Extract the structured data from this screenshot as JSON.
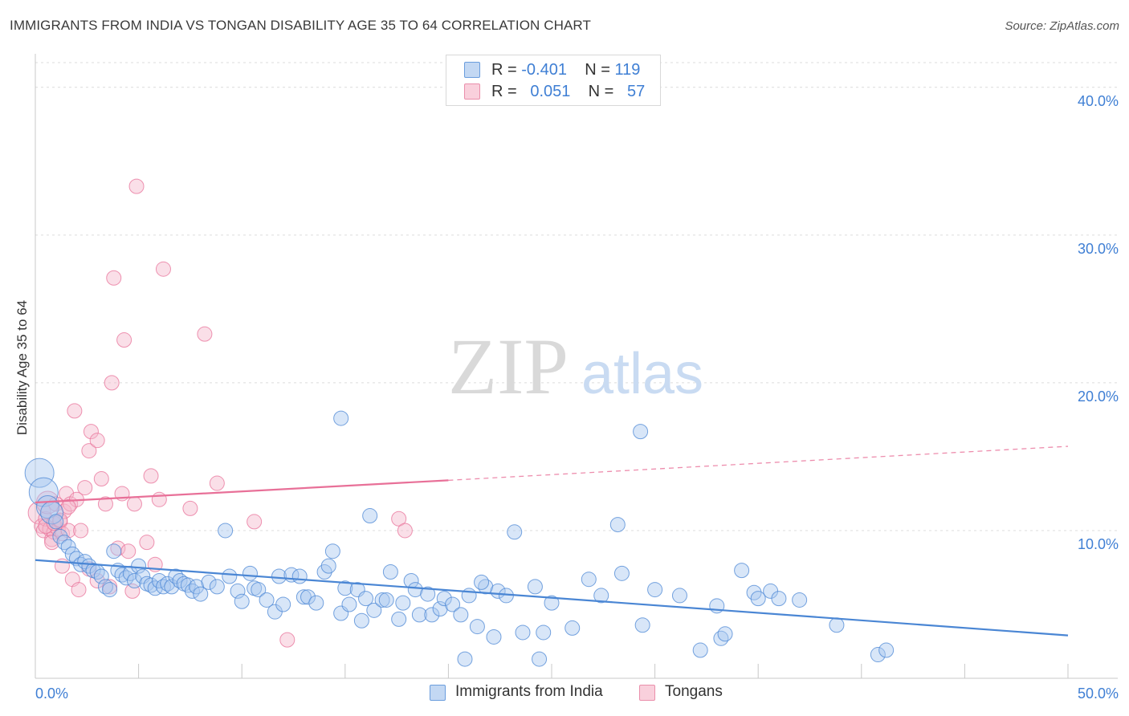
{
  "title": "IMMIGRANTS FROM INDIA VS TONGAN DISABILITY AGE 35 TO 64 CORRELATION CHART",
  "source": "Source: ZipAtlas.com",
  "watermark": {
    "zip": "ZIP",
    "atlas": "atlas"
  },
  "legend": {
    "rows": [
      {
        "r_label": "R =",
        "r_value": "-0.401",
        "n_label": "N =",
        "n_value": "119",
        "color": "#a9c7ef"
      },
      {
        "r_label": "R =",
        "r_value": "0.051",
        "n_label": "N =",
        "n_value": "57",
        "color": "#f5b8cb"
      }
    ]
  },
  "bottom_legend": [
    {
      "label": "Immigrants from India",
      "color": "#a9c7ef"
    },
    {
      "label": "Tongans",
      "color": "#f5b8cb"
    }
  ],
  "chart_data": {
    "type": "scatter",
    "title": "IMMIGRANTS FROM INDIA VS TONGAN DISABILITY AGE 35 TO 64 CORRELATION CHART",
    "xlabel": "",
    "ylabel": "Disability Age 35 to 64",
    "xlim": [
      0,
      50
    ],
    "ylim": [
      0,
      42
    ],
    "x_tick_labels": [
      "0.0%",
      "50.0%"
    ],
    "y_ticks": [
      10,
      20,
      30,
      40
    ],
    "y_tick_labels": [
      "10.0%",
      "20.0%",
      "30.0%",
      "40.0%"
    ],
    "grid": true,
    "colors": {
      "india": "#4a86d4",
      "india_fill": "#a9c7ef",
      "tongan": "#e87098",
      "tongan_fill": "#f5b8cb",
      "axis_label": "#3f7fd4"
    },
    "series": [
      {
        "name": "Immigrants from India",
        "trend": {
          "x": [
            0,
            50
          ],
          "y": [
            8.0,
            2.9
          ]
        },
        "points": [
          [
            0.2,
            13.9
          ],
          [
            0.4,
            12.6
          ],
          [
            0.6,
            11.6
          ],
          [
            0.8,
            11.2
          ],
          [
            1.0,
            10.6
          ],
          [
            1.2,
            9.6
          ],
          [
            1.4,
            9.2
          ],
          [
            1.6,
            8.9
          ],
          [
            1.8,
            8.4
          ],
          [
            2.0,
            8.1
          ],
          [
            2.2,
            7.7
          ],
          [
            2.4,
            7.9
          ],
          [
            2.6,
            7.6
          ],
          [
            2.8,
            7.3
          ],
          [
            3.0,
            7.2
          ],
          [
            3.2,
            6.9
          ],
          [
            3.4,
            6.2
          ],
          [
            3.6,
            6.0
          ],
          [
            3.8,
            8.6
          ],
          [
            4.0,
            7.3
          ],
          [
            4.2,
            7.0
          ],
          [
            4.4,
            6.8
          ],
          [
            4.6,
            7.1
          ],
          [
            4.8,
            6.6
          ],
          [
            5.0,
            7.6
          ],
          [
            5.2,
            6.9
          ],
          [
            5.4,
            6.4
          ],
          [
            5.6,
            6.3
          ],
          [
            5.8,
            6.1
          ],
          [
            6.0,
            6.6
          ],
          [
            6.2,
            6.2
          ],
          [
            6.4,
            6.4
          ],
          [
            6.6,
            6.2
          ],
          [
            6.8,
            6.9
          ],
          [
            7.0,
            6.6
          ],
          [
            7.2,
            6.4
          ],
          [
            7.4,
            6.3
          ],
          [
            7.6,
            5.9
          ],
          [
            7.8,
            6.2
          ],
          [
            8.0,
            5.7
          ],
          [
            8.4,
            6.5
          ],
          [
            8.8,
            6.2
          ],
          [
            9.2,
            10.0
          ],
          [
            9.4,
            6.9
          ],
          [
            9.8,
            5.9
          ],
          [
            10.0,
            5.2
          ],
          [
            10.4,
            7.1
          ],
          [
            10.6,
            6.1
          ],
          [
            10.8,
            6.0
          ],
          [
            11.2,
            5.3
          ],
          [
            11.6,
            4.5
          ],
          [
            11.8,
            6.9
          ],
          [
            12.0,
            5.0
          ],
          [
            12.4,
            7.0
          ],
          [
            12.8,
            6.9
          ],
          [
            13.0,
            5.5
          ],
          [
            13.2,
            5.5
          ],
          [
            13.6,
            5.1
          ],
          [
            14.0,
            7.2
          ],
          [
            14.2,
            7.6
          ],
          [
            14.4,
            8.6
          ],
          [
            14.8,
            4.4
          ],
          [
            15.0,
            6.1
          ],
          [
            15.2,
            5.0
          ],
          [
            15.6,
            6.0
          ],
          [
            15.8,
            3.9
          ],
          [
            16.0,
            5.4
          ],
          [
            16.4,
            4.6
          ],
          [
            16.8,
            5.3
          ],
          [
            17.0,
            5.3
          ],
          [
            17.2,
            7.2
          ],
          [
            17.6,
            4.0
          ],
          [
            17.8,
            5.1
          ],
          [
            18.2,
            6.6
          ],
          [
            18.4,
            6.0
          ],
          [
            18.6,
            4.3
          ],
          [
            19.0,
            5.7
          ],
          [
            19.2,
            4.3
          ],
          [
            19.6,
            4.7
          ],
          [
            19.8,
            5.4
          ],
          [
            20.2,
            5.0
          ],
          [
            20.6,
            4.3
          ],
          [
            20.8,
            1.3
          ],
          [
            21.0,
            5.6
          ],
          [
            21.4,
            3.5
          ],
          [
            21.8,
            6.2
          ],
          [
            22.2,
            2.8
          ],
          [
            22.4,
            5.9
          ],
          [
            22.8,
            5.6
          ],
          [
            23.2,
            9.9
          ],
          [
            23.6,
            3.1
          ],
          [
            24.2,
            6.2
          ],
          [
            24.4,
            1.3
          ],
          [
            24.6,
            3.1
          ],
          [
            25.0,
            5.1
          ],
          [
            26.0,
            3.4
          ],
          [
            26.8,
            6.7
          ],
          [
            27.4,
            5.6
          ],
          [
            28.2,
            10.4
          ],
          [
            28.4,
            7.1
          ],
          [
            29.4,
            3.6
          ],
          [
            30.0,
            6.0
          ],
          [
            31.2,
            5.6
          ],
          [
            32.2,
            1.9
          ],
          [
            33.0,
            4.9
          ],
          [
            33.2,
            2.7
          ],
          [
            33.4,
            3.0
          ],
          [
            34.2,
            7.3
          ],
          [
            34.8,
            5.8
          ],
          [
            35.0,
            5.4
          ],
          [
            35.6,
            5.9
          ],
          [
            36.0,
            5.4
          ],
          [
            37.0,
            5.3
          ],
          [
            38.8,
            3.6
          ],
          [
            40.8,
            1.6
          ],
          [
            41.2,
            1.9
          ],
          [
            21.6,
            6.5
          ],
          [
            16.2,
            11.0
          ],
          [
            14.8,
            17.6
          ],
          [
            29.3,
            16.7
          ]
        ]
      },
      {
        "name": "Tongans",
        "trend": {
          "x": [
            0,
            20
          ],
          "y": [
            11.9,
            13.4
          ]
        },
        "trend_dashed": {
          "x": [
            20,
            50
          ],
          "y": [
            13.4,
            15.7
          ]
        },
        "points": [
          [
            0.2,
            11.2
          ],
          [
            0.3,
            10.3
          ],
          [
            0.4,
            10.0
          ],
          [
            0.5,
            10.8
          ],
          [
            0.6,
            11.9
          ],
          [
            0.7,
            10.1
          ],
          [
            0.8,
            9.4
          ],
          [
            0.9,
            9.9
          ],
          [
            1.0,
            11.8
          ],
          [
            1.1,
            10.1
          ],
          [
            1.2,
            10.6
          ],
          [
            1.3,
            9.8
          ],
          [
            1.4,
            11.3
          ],
          [
            1.5,
            12.5
          ],
          [
            1.6,
            10.0
          ],
          [
            1.7,
            11.8
          ],
          [
            1.8,
            6.7
          ],
          [
            1.9,
            18.1
          ],
          [
            2.0,
            12.1
          ],
          [
            2.1,
            6.0
          ],
          [
            2.4,
            12.9
          ],
          [
            2.6,
            15.4
          ],
          [
            2.7,
            16.7
          ],
          [
            3.0,
            16.1
          ],
          [
            3.2,
            13.5
          ],
          [
            3.4,
            11.8
          ],
          [
            3.6,
            6.2
          ],
          [
            3.7,
            20.0
          ],
          [
            3.8,
            27.1
          ],
          [
            4.0,
            8.8
          ],
          [
            4.2,
            12.5
          ],
          [
            4.3,
            22.9
          ],
          [
            4.5,
            8.6
          ],
          [
            4.7,
            5.9
          ],
          [
            4.8,
            11.8
          ],
          [
            4.9,
            33.3
          ],
          [
            5.4,
            9.2
          ],
          [
            5.6,
            13.7
          ],
          [
            5.8,
            7.7
          ],
          [
            6.0,
            12.1
          ],
          [
            6.2,
            27.7
          ],
          [
            7.5,
            11.5
          ],
          [
            8.2,
            23.3
          ],
          [
            8.8,
            13.2
          ],
          [
            10.6,
            10.6
          ],
          [
            12.2,
            2.6
          ],
          [
            17.6,
            10.8
          ],
          [
            17.9,
            10.0
          ],
          [
            1.3,
            7.6
          ],
          [
            2.6,
            7.4
          ],
          [
            0.8,
            9.2
          ],
          [
            1.6,
            11.6
          ],
          [
            2.2,
            10.0
          ],
          [
            0.5,
            10.3
          ],
          [
            0.9,
            10.5
          ],
          [
            3.0,
            6.6
          ],
          [
            1.2,
            10.7
          ]
        ]
      }
    ]
  }
}
